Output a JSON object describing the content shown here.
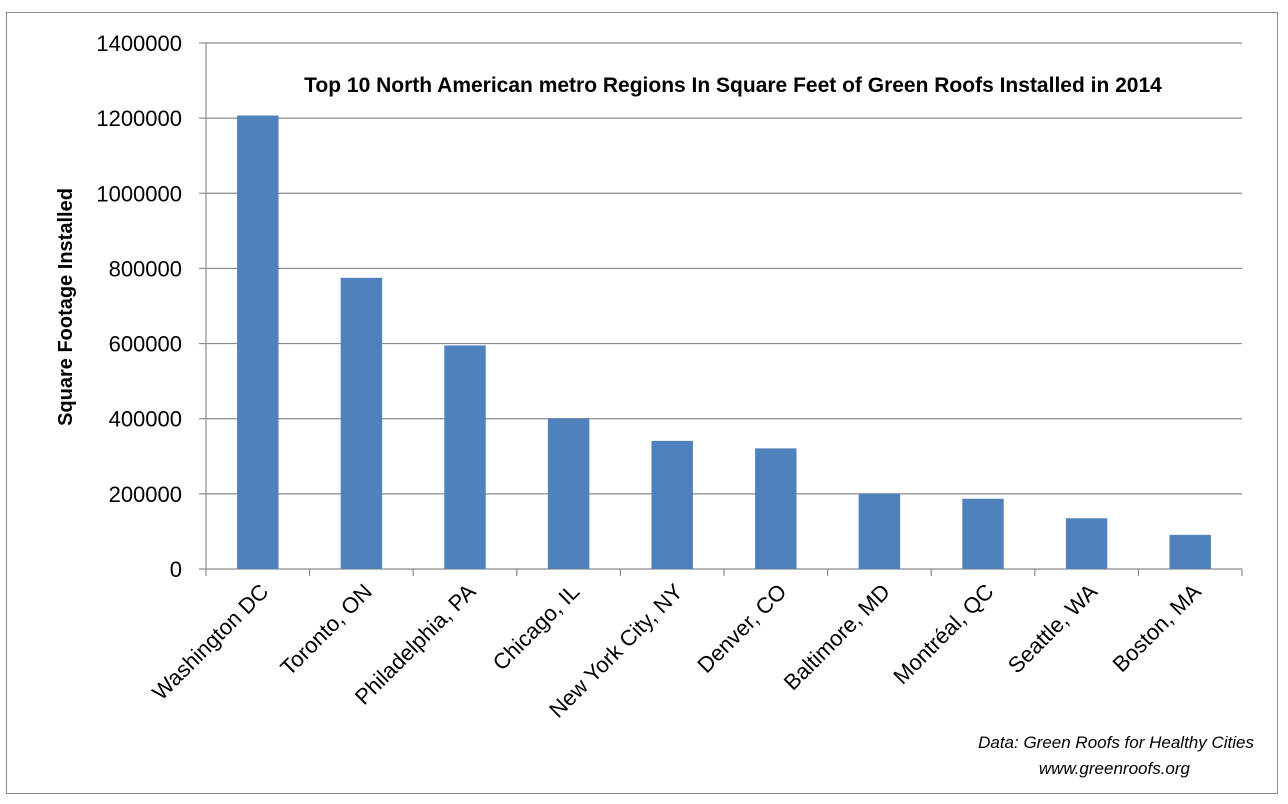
{
  "chart_data": {
    "type": "bar",
    "title": "Top 10 North American metro Regions In Square Feet of Green Roofs Installed in 2014",
    "ylabel": "Square Footage Installed",
    "xlabel": "",
    "ylim": [
      0,
      1400000
    ],
    "yticks": [
      "0",
      "200000",
      "400000",
      "600000",
      "800000",
      "1000000",
      "1200000",
      "1400000"
    ],
    "grid": true,
    "categories": [
      "Washington DC",
      "Toronto, ON",
      "Philadelphia, PA",
      "Chicago, IL",
      "New York City, NY",
      "Denver, CO",
      "Baltimore, MD",
      "Montréal, QC",
      "Seattle, WA",
      "Boston, MA"
    ],
    "values": [
      1207000,
      775000,
      595000,
      401000,
      341000,
      321000,
      201000,
      187000,
      135000,
      91000
    ],
    "bar_color": "#4f81bd",
    "source_line1": "Data: Green Roofs for Healthy Cities",
    "source_line2": "www.greenroofs.org"
  }
}
